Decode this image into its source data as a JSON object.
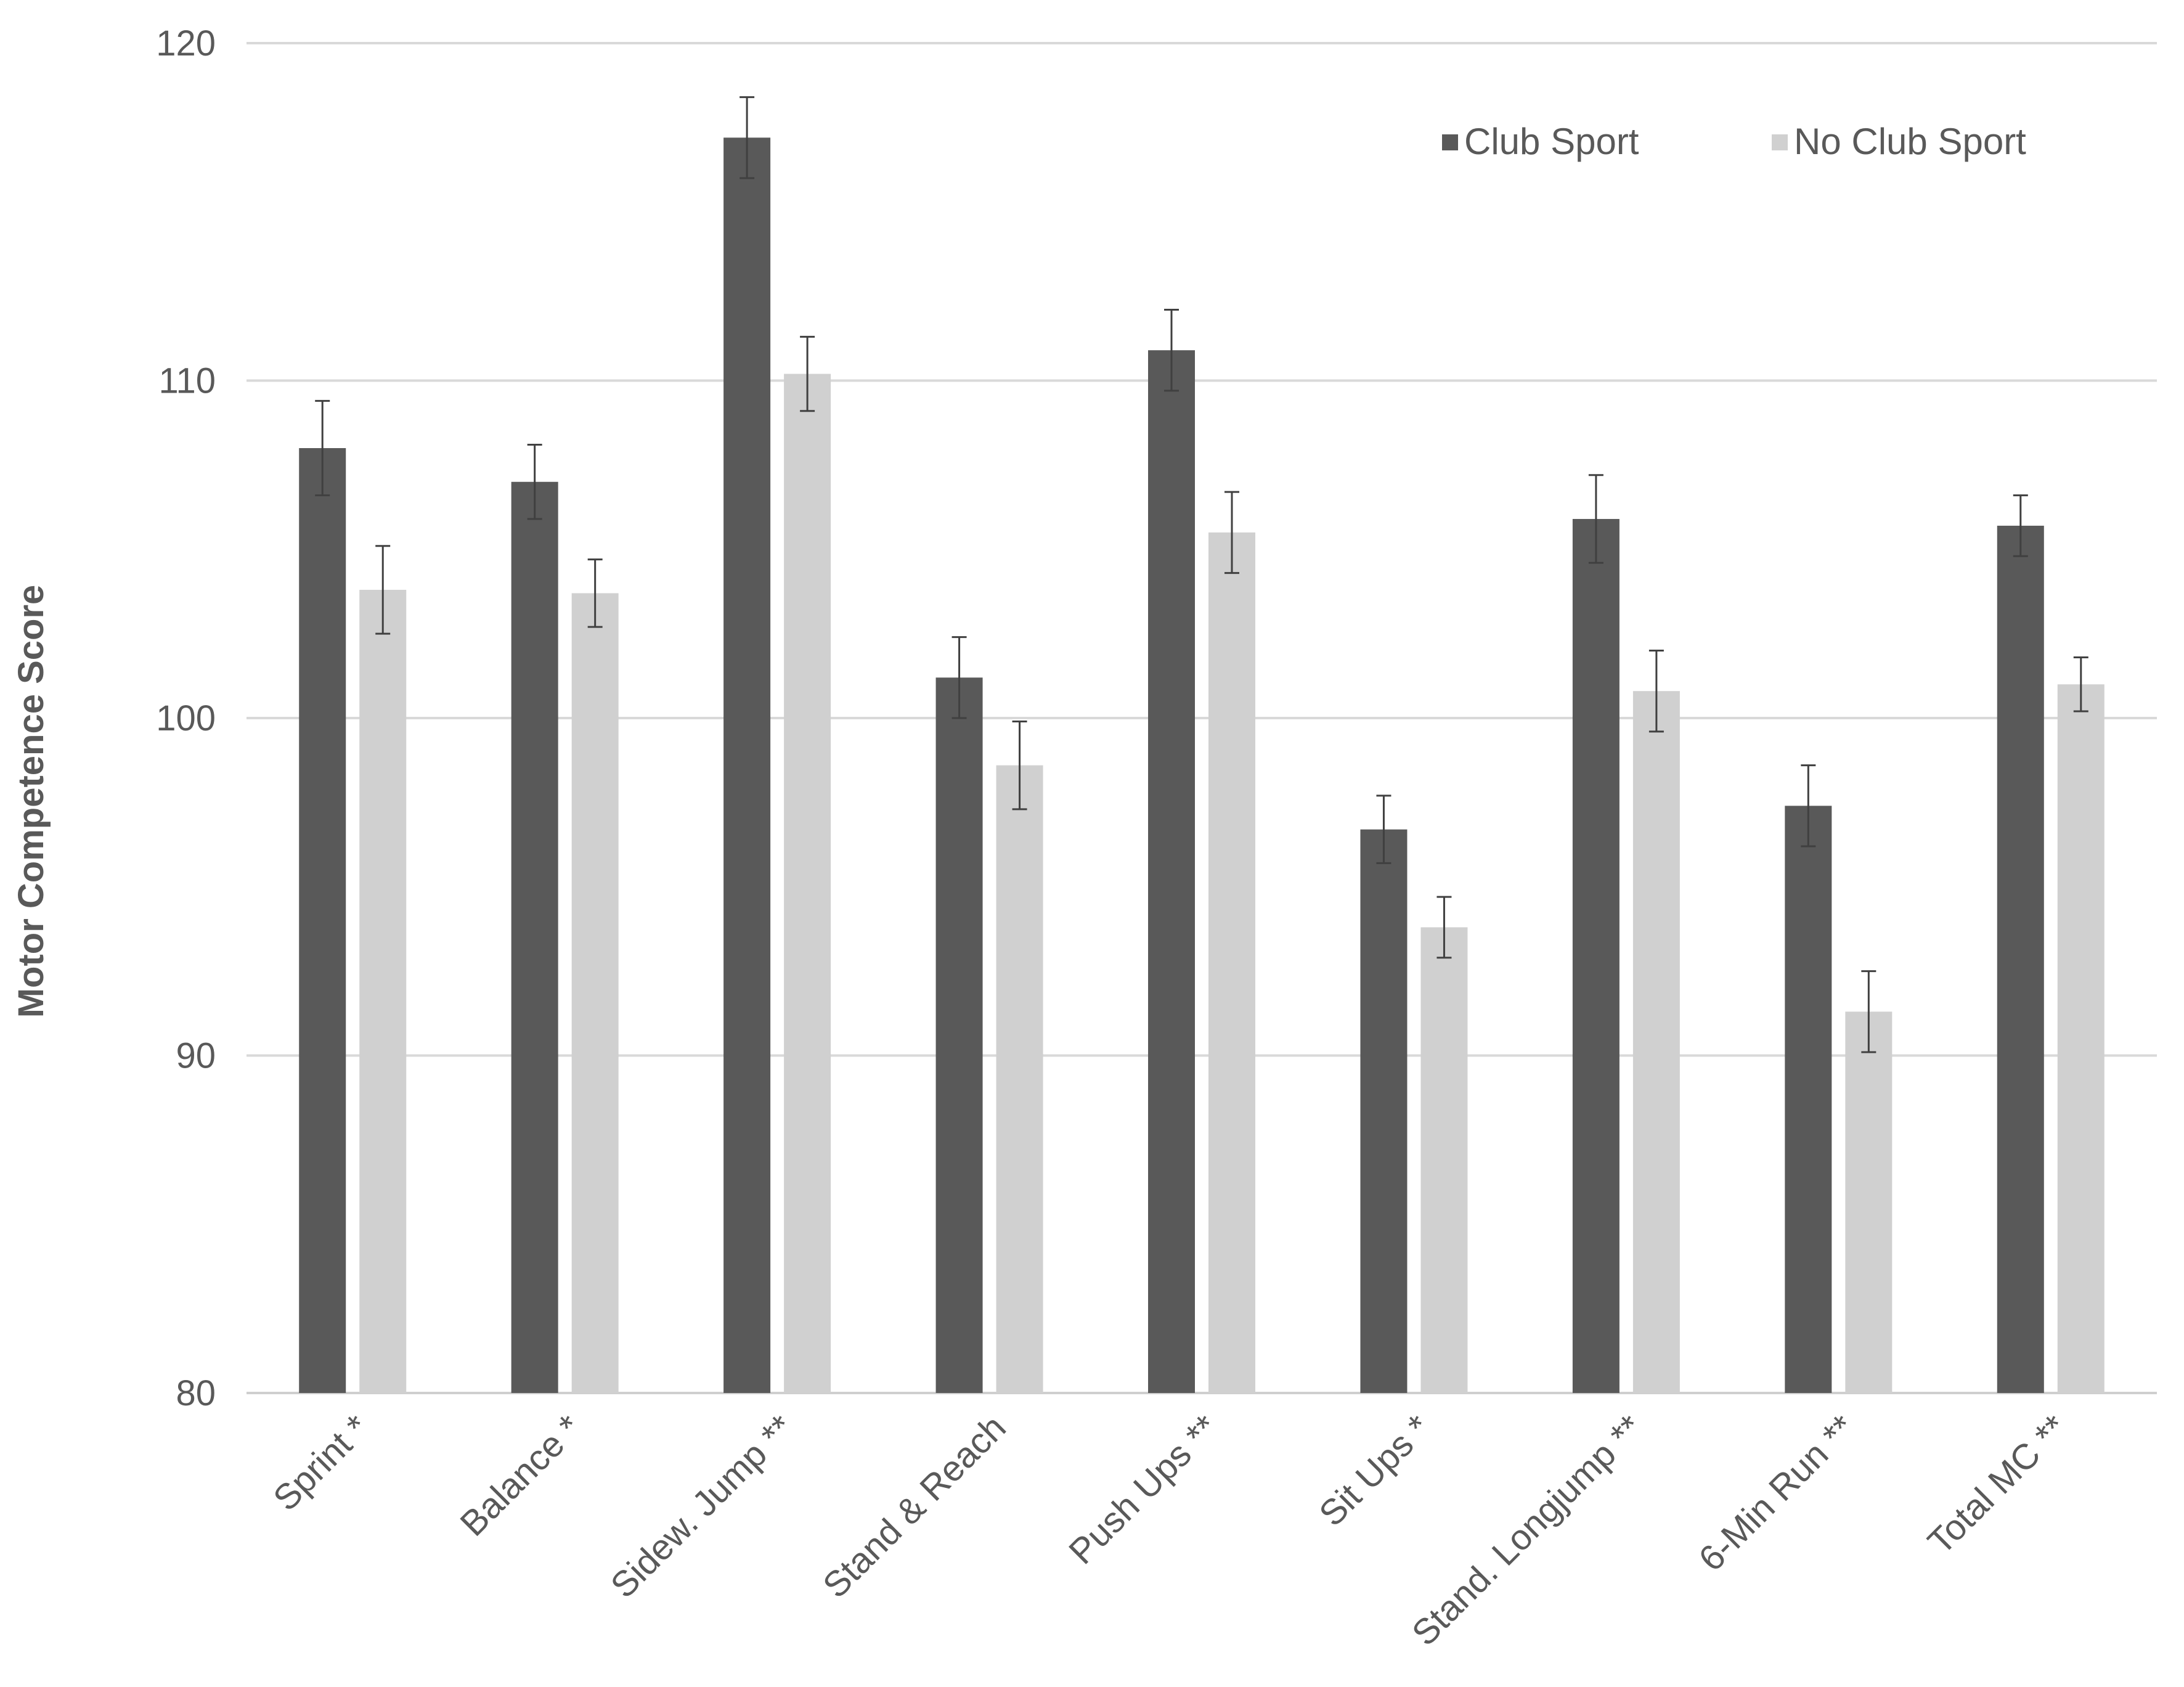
{
  "chart_data": {
    "type": "bar",
    "title": "",
    "xlabel": "",
    "ylabel": "Motor  Competence  Score",
    "ylim": [
      80,
      120
    ],
    "yticks": [
      80,
      90,
      100,
      110,
      120
    ],
    "grid": true,
    "legend_position": "top-right",
    "categories": [
      "Sprint *",
      "Balance *",
      "Sidew. Jump **",
      "Stand & Reach",
      "Push Ups **",
      "Sit Ups *",
      "Stand. Longjump **",
      "6-Min Run **",
      "Total MC **"
    ],
    "series": [
      {
        "name": "Club Sport",
        "color": "#595959",
        "values": [
          108.0,
          107.0,
          117.2,
          101.2,
          110.9,
          96.7,
          105.9,
          97.4,
          105.7
        ],
        "error": [
          1.4,
          1.1,
          1.2,
          1.2,
          1.2,
          1.0,
          1.3,
          1.2,
          0.9
        ]
      },
      {
        "name": "No Club Sport",
        "color": "#d0d0d0",
        "values": [
          103.8,
          103.7,
          110.2,
          98.6,
          105.5,
          93.8,
          100.8,
          91.3,
          101.0
        ],
        "error": [
          1.3,
          1.0,
          1.1,
          1.3,
          1.2,
          0.9,
          1.2,
          1.2,
          0.8
        ]
      }
    ]
  }
}
